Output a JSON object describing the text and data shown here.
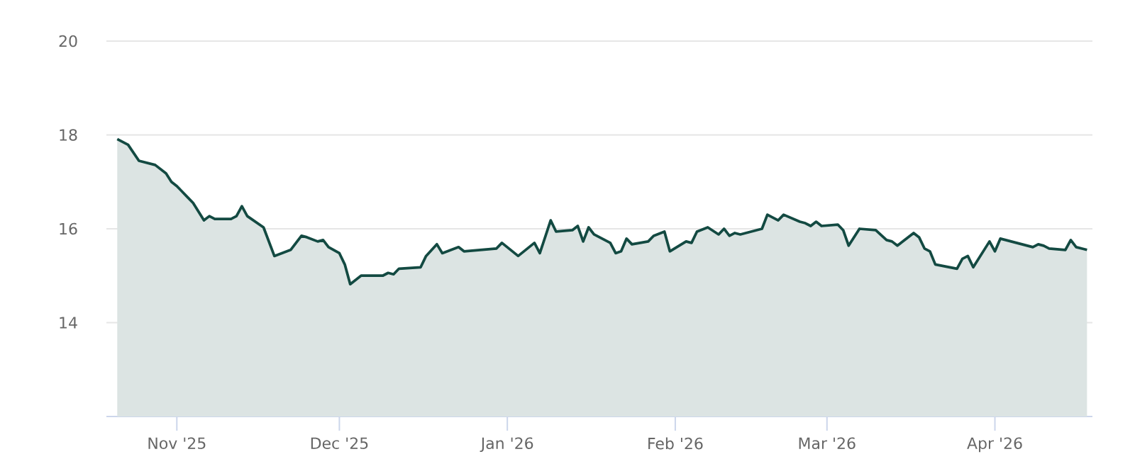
{
  "chart_data": {
    "type": "area",
    "color": "#134a42",
    "grid": "y",
    "x": [
      "2025-10-21",
      "2025-10-23",
      "2025-10-25",
      "2025-10-28",
      "2025-10-30",
      "2025-10-31",
      "2025-11-01",
      "2025-11-03",
      "2025-11-04",
      "2025-11-06",
      "2025-11-07",
      "2025-11-08",
      "2025-11-11",
      "2025-11-12",
      "2025-11-13",
      "2025-11-14",
      "2025-11-17",
      "2025-11-19",
      "2025-11-22",
      "2025-11-24",
      "2025-11-25",
      "2025-11-27",
      "2025-11-28",
      "2025-11-29",
      "2025-12-01",
      "2025-12-02",
      "2025-12-03",
      "2025-12-05",
      "2025-12-09",
      "2025-12-10",
      "2025-12-11",
      "2025-12-12",
      "2025-12-16",
      "2025-12-17",
      "2025-12-19",
      "2025-12-20",
      "2025-12-23",
      "2025-12-24",
      "2025-12-30",
      "2025-12-31",
      "2026-01-03",
      "2026-01-06",
      "2026-01-07",
      "2026-01-09",
      "2026-01-10",
      "2026-01-13",
      "2026-01-14",
      "2026-01-15",
      "2026-01-16",
      "2026-01-17",
      "2026-01-20",
      "2026-01-21",
      "2026-01-22",
      "2026-01-23",
      "2026-01-24",
      "2026-01-27",
      "2026-01-28",
      "2026-01-30",
      "2026-01-31",
      "2026-02-03",
      "2026-02-04",
      "2026-02-05",
      "2026-02-07",
      "2026-02-09",
      "2026-02-10",
      "2026-02-11",
      "2026-02-12",
      "2026-02-13",
      "2026-02-14",
      "2026-02-17",
      "2026-02-18",
      "2026-02-20",
      "2026-02-21",
      "2026-02-24",
      "2026-02-25",
      "2026-02-26",
      "2026-02-27",
      "2026-02-28",
      "2026-03-03",
      "2026-03-04",
      "2026-03-05",
      "2026-03-07",
      "2026-03-10",
      "2026-03-12",
      "2026-03-13",
      "2026-03-14",
      "2026-03-17",
      "2026-03-18",
      "2026-03-19",
      "2026-03-20",
      "2026-03-21",
      "2026-03-25",
      "2026-03-26",
      "2026-03-27",
      "2026-03-28",
      "2026-03-31",
      "2026-04-01",
      "2026-04-02",
      "2026-04-08",
      "2026-04-09",
      "2026-04-10",
      "2026-04-11",
      "2026-04-14",
      "2026-04-15",
      "2026-04-16",
      "2026-04-18"
    ],
    "values": [
      17.91,
      17.79,
      17.45,
      17.36,
      17.18,
      17.0,
      16.91,
      16.67,
      16.55,
      16.18,
      16.27,
      16.21,
      16.21,
      16.27,
      16.48,
      16.27,
      16.03,
      15.42,
      15.55,
      15.85,
      15.82,
      15.73,
      15.76,
      15.61,
      15.48,
      15.24,
      14.82,
      15.0,
      15.0,
      15.06,
      15.03,
      15.15,
      15.18,
      15.42,
      15.67,
      15.48,
      15.61,
      15.52,
      15.58,
      15.7,
      15.42,
      15.7,
      15.48,
      16.18,
      15.94,
      15.97,
      16.06,
      15.73,
      16.03,
      15.88,
      15.7,
      15.48,
      15.52,
      15.79,
      15.67,
      15.73,
      15.85,
      15.94,
      15.52,
      15.73,
      15.7,
      15.94,
      16.03,
      15.88,
      16.0,
      15.85,
      15.91,
      15.88,
      15.91,
      16.0,
      16.3,
      16.18,
      16.3,
      16.15,
      16.12,
      16.06,
      16.15,
      16.06,
      16.09,
      15.97,
      15.64,
      16.0,
      15.97,
      15.76,
      15.73,
      15.64,
      15.91,
      15.82,
      15.58,
      15.52,
      15.24,
      15.15,
      15.36,
      15.42,
      15.18,
      15.73,
      15.52,
      15.79,
      15.61,
      15.67,
      15.64,
      15.58,
      15.55,
      15.76,
      15.61,
      15.55
    ],
    "xlim": [
      "2025-10-19",
      "2026-04-19"
    ],
    "xticks": [
      {
        "value": "2025-11-01",
        "label": "Nov '25"
      },
      {
        "value": "2025-12-01",
        "label": "Dec '25"
      },
      {
        "value": "2026-01-01",
        "label": "Jan '26"
      },
      {
        "value": "2026-02-01",
        "label": "Feb '26"
      },
      {
        "value": "2026-03-01",
        "label": "Mar '26"
      },
      {
        "value": "2026-04-01",
        "label": "Apr '26"
      }
    ],
    "ylim": [
      12,
      20
    ],
    "yticks": [
      14,
      16,
      18,
      20
    ]
  }
}
